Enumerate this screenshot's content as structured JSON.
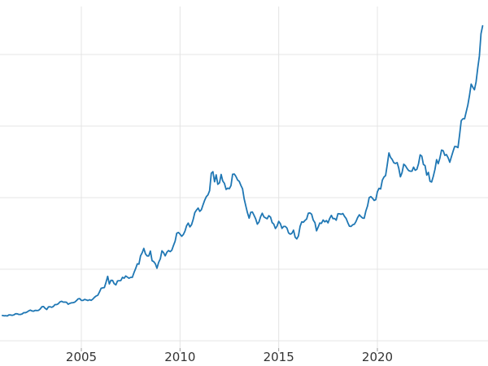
{
  "chart_data": {
    "type": "line",
    "title": "",
    "xlabel": "",
    "ylabel": "",
    "x_interval": "monthly",
    "x_start": 2001.0,
    "x_end": 2025.33,
    "xticks": [
      2005,
      2010,
      2015,
      2020
    ],
    "xtick_labels": [
      "2005",
      "2010",
      "2015",
      "2020"
    ],
    "yticks": [
      0,
      750,
      1500,
      2250,
      3000
    ],
    "ylim": [
      -80,
      3500
    ],
    "grid": true,
    "legend_position": "none",
    "styles": {
      "line_color": "#1f77b4",
      "grid_color": "#e4e4e4",
      "tick_mark_color": "#999999",
      "tick_label_color": "#333333",
      "background": "#ffffff"
    },
    "series": [
      {
        "name": "series-1",
        "color": "#1f77b4",
        "values": [
          265,
          262,
          263,
          260,
          272,
          270,
          267,
          272,
          283,
          283,
          276,
          276,
          281,
          295,
          294,
          302,
          314,
          321,
          313,
          310,
          319,
          317,
          319,
          333,
          356,
          359,
          340,
          328,
          355,
          356,
          351,
          360,
          379,
          379,
          389,
          407,
          414,
          405,
          406,
          403,
          383,
          392,
          398,
          400,
          405,
          420,
          439,
          442,
          424,
          423,
          434,
          429,
          422,
          430,
          424,
          437,
          456,
          470,
          476,
          510,
          550,
          555,
          557,
          611,
          675,
          596,
          634,
          632,
          598,
          586,
          627,
          630,
          631,
          665,
          655,
          679,
          667,
          655,
          665,
          665,
          713,
          755,
          806,
          803,
          890,
          922,
          968,
          910,
          889,
          889,
          940,
          839,
          829,
          807,
          760,
          820,
          858,
          943,
          924,
          890,
          928,
          946,
          934,
          949,
          996,
          1043,
          1127,
          1135,
          1118,
          1095,
          1113,
          1149,
          1205,
          1233,
          1193,
          1216,
          1271,
          1342,
          1370,
          1391,
          1356,
          1373,
          1424,
          1474,
          1511,
          1529,
          1573,
          1756,
          1772,
          1666,
          1739,
          1640,
          1655,
          1743,
          1674,
          1650,
          1586,
          1599,
          1594,
          1627,
          1745,
          1747,
          1722,
          1685,
          1671,
          1628,
          1593,
          1487,
          1414,
          1343,
          1285,
          1347,
          1349,
          1316,
          1276,
          1222,
          1244,
          1300,
          1336,
          1299,
          1288,
          1279,
          1311,
          1296,
          1238,
          1223,
          1176,
          1201,
          1251,
          1227,
          1178,
          1198,
          1198,
          1181,
          1130,
          1117,
          1125,
          1159,
          1086,
          1068,
          1098,
          1200,
          1246,
          1242,
          1261,
          1276,
          1337,
          1340,
          1327,
          1266,
          1238,
          1152,
          1192,
          1234,
          1231,
          1266,
          1246,
          1260,
          1236,
          1283,
          1314,
          1280,
          1282,
          1264,
          1331,
          1330,
          1325,
          1334,
          1303,
          1281,
          1238,
          1201,
          1198,
          1215,
          1221,
          1250,
          1291,
          1320,
          1301,
          1286,
          1284,
          1359,
          1413,
          1500,
          1511,
          1495,
          1471,
          1479,
          1561,
          1597,
          1591,
          1683,
          1716,
          1732,
          1843,
          1969,
          1922,
          1900,
          1866,
          1858,
          1867,
          1808,
          1718,
          1762,
          1850,
          1835,
          1807,
          1784,
          1777,
          1777,
          1820,
          1787,
          1797,
          1856,
          1948,
          1934,
          1848,
          1836,
          1736,
          1765,
          1671,
          1664,
          1725,
          1797,
          1898,
          1855,
          1913,
          1999,
          1992,
          1943,
          1951,
          1918,
          1871,
          1928,
          1984,
          2036,
          2034,
          2025,
          2160,
          2307,
          2327,
          2327,
          2398,
          2470,
          2568,
          2690,
          2657,
          2630,
          2710,
          2858,
          2983,
          3218,
          3300
        ]
      }
    ]
  }
}
